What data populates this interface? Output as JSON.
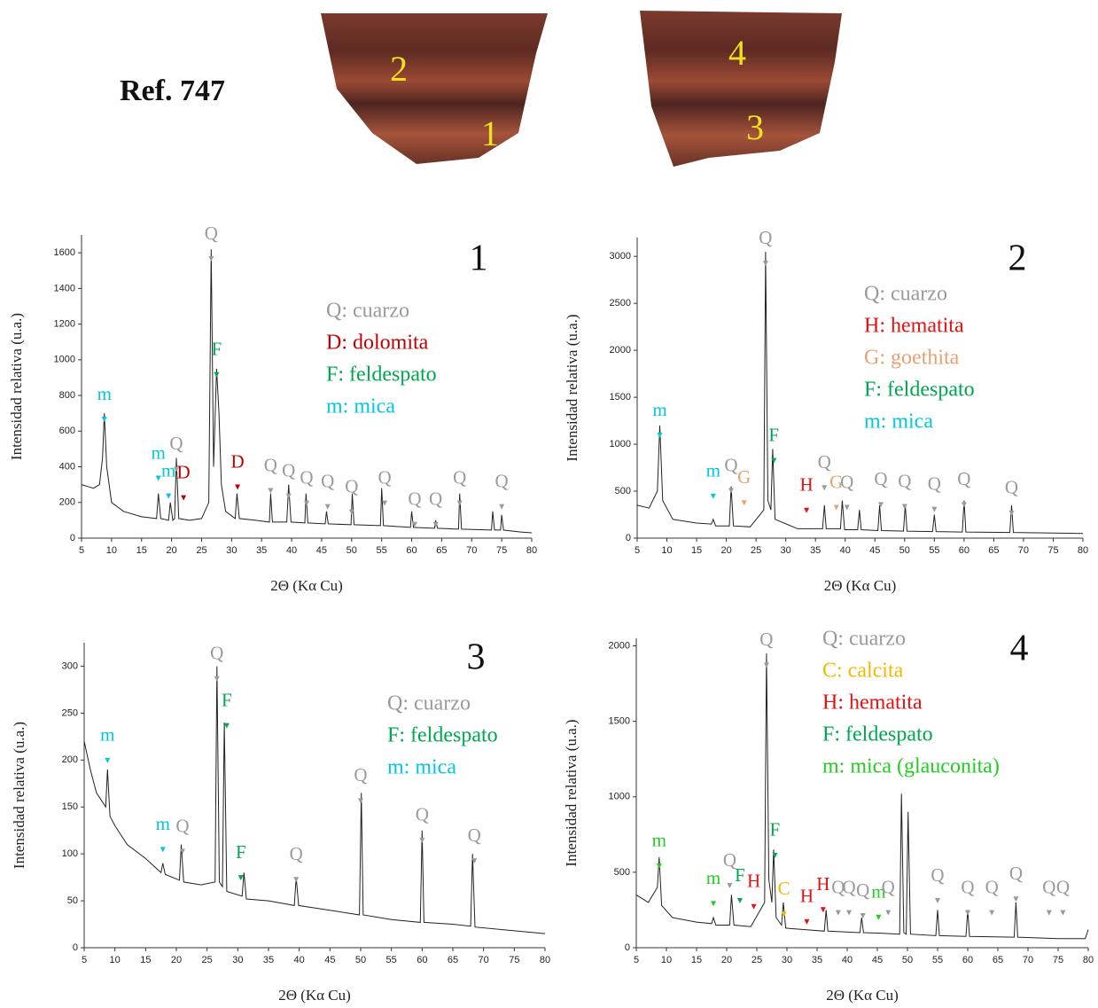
{
  "header": {
    "title": "Ref. 747",
    "fragment_labels": [
      "2",
      "1",
      "4",
      "3"
    ]
  },
  "chart_data": [
    {
      "type": "line",
      "label": "1",
      "xlabel": "2Θ (Kα Cu)",
      "ylabel": "Intensidad relativa (u.a.)",
      "xlim": [
        5,
        80
      ],
      "xticks": [
        5,
        10,
        15,
        20,
        25,
        30,
        35,
        40,
        45,
        50,
        55,
        60,
        65,
        70,
        75,
        80
      ],
      "ylim": [
        0,
        1700
      ],
      "yticks": [
        0,
        200,
        400,
        600,
        800,
        1000,
        1200,
        1400,
        1600
      ],
      "legend": [
        {
          "text": "Q: cuarzo",
          "color": "#9a9a9a"
        },
        {
          "text": "D: dolomita",
          "color": "#c00000"
        },
        {
          "text": "F: feldespato",
          "color": "#00a650"
        },
        {
          "text": "m: mica",
          "color": "#00c8e0"
        }
      ],
      "series": [
        {
          "color": "#222222",
          "x": [
            5,
            6,
            7,
            8,
            8.5,
            8.8,
            9.2,
            10,
            12,
            15,
            17.5,
            17.8,
            18.2,
            19.5,
            19.8,
            20.2,
            20.5,
            20.8,
            21.2,
            23,
            25,
            26.2,
            26.6,
            27,
            27.5,
            27.9,
            28.3,
            29,
            30.6,
            30.9,
            31.3,
            34,
            36.3,
            36.5,
            36.8,
            39.2,
            39.5,
            39.9,
            42.2,
            42.4,
            42.7,
            45.6,
            45.8,
            46.1,
            49.9,
            50.1,
            50.4,
            54.8,
            55,
            55.3,
            59.8,
            60,
            60.3,
            63.8,
            64,
            64.3,
            67.8,
            68,
            68.3,
            73.3,
            73.5,
            73.8,
            74.8,
            75,
            75.3,
            78,
            80
          ],
          "values": [
            300,
            290,
            280,
            300,
            450,
            700,
            400,
            200,
            150,
            120,
            110,
            250,
            110,
            100,
            200,
            100,
            110,
            450,
            110,
            100,
            110,
            200,
            1620,
            400,
            950,
            700,
            300,
            150,
            110,
            250,
            110,
            100,
            90,
            250,
            90,
            90,
            300,
            90,
            85,
            250,
            85,
            80,
            150,
            80,
            75,
            250,
            75,
            70,
            280,
            70,
            60,
            150,
            60,
            55,
            100,
            55,
            50,
            250,
            50,
            45,
            150,
            45,
            45,
            130,
            45,
            35,
            30
          ]
        }
      ],
      "annotations": [
        {
          "text": "m",
          "x": 8.8,
          "y": 800,
          "color": "#00c8e0"
        },
        {
          "text": "m",
          "x": 17.8,
          "y": 470,
          "color": "#00c8e0"
        },
        {
          "text": "m",
          "x": 19.5,
          "y": 370,
          "color": "#00c8e0"
        },
        {
          "text": "Q",
          "x": 20.8,
          "y": 520,
          "color": "#9a9a9a"
        },
        {
          "text": "D",
          "x": 22,
          "y": 360,
          "color": "#c00000"
        },
        {
          "text": "Q",
          "x": 26.6,
          "y": 1700,
          "color": "#9a9a9a"
        },
        {
          "text": "F",
          "x": 27.5,
          "y": 1050,
          "color": "#00a650"
        },
        {
          "text": "D",
          "x": 31,
          "y": 420,
          "color": "#c00000"
        },
        {
          "text": "Q",
          "x": 36.5,
          "y": 400,
          "color": "#9a9a9a"
        },
        {
          "text": "Q",
          "x": 39.5,
          "y": 370,
          "color": "#9a9a9a"
        },
        {
          "text": "Q",
          "x": 42.5,
          "y": 330,
          "color": "#9a9a9a"
        },
        {
          "text": "Q",
          "x": 46,
          "y": 310,
          "color": "#9a9a9a"
        },
        {
          "text": "Q",
          "x": 50,
          "y": 280,
          "color": "#9a9a9a"
        },
        {
          "text": "Q",
          "x": 55.5,
          "y": 330,
          "color": "#9a9a9a"
        },
        {
          "text": "Q",
          "x": 60.5,
          "y": 210,
          "color": "#9a9a9a"
        },
        {
          "text": "Q",
          "x": 64,
          "y": 210,
          "color": "#9a9a9a"
        },
        {
          "text": "Q",
          "x": 68,
          "y": 330,
          "color": "#9a9a9a"
        },
        {
          "text": "Q",
          "x": 75,
          "y": 310,
          "color": "#9a9a9a"
        }
      ]
    },
    {
      "type": "line",
      "label": "2",
      "xlabel": "2Θ (Kα Cu)",
      "ylabel": "Intensidad relativa (u.a.)",
      "xlim": [
        5,
        80
      ],
      "xticks": [
        5,
        10,
        15,
        20,
        25,
        30,
        35,
        40,
        45,
        50,
        55,
        60,
        65,
        70,
        75,
        80
      ],
      "ylim": [
        0,
        3200
      ],
      "yticks": [
        0,
        500,
        1000,
        1500,
        2000,
        2500,
        3000
      ],
      "legend": [
        {
          "text": "Q: cuarzo",
          "color": "#9a9a9a"
        },
        {
          "text": "H: hematita",
          "color": "#e81010"
        },
        {
          "text": "G: goethita",
          "color": "#e8a070"
        },
        {
          "text": "F: feldespato",
          "color": "#00a650"
        },
        {
          "text": "m: mica",
          "color": "#00c8e0"
        }
      ],
      "series": [
        {
          "color": "#222222",
          "x": [
            5,
            7,
            8.4,
            8.8,
            9.3,
            11,
            15,
            17.5,
            17.8,
            18.2,
            20.5,
            20.8,
            21.2,
            24,
            26.3,
            26.6,
            27,
            27.5,
            27.8,
            28.2,
            32,
            36.2,
            36.5,
            36.8,
            39.2,
            39.5,
            39.9,
            42.1,
            42.4,
            42.7,
            45.5,
            45.8,
            46.1,
            49.8,
            50.1,
            50.4,
            54.7,
            55,
            55.3,
            59.7,
            60,
            60.3,
            67.7,
            68,
            68.3,
            75,
            80
          ],
          "values": [
            350,
            320,
            500,
            1200,
            400,
            200,
            160,
            150,
            200,
            130,
            130,
            550,
            130,
            120,
            300,
            3050,
            400,
            300,
            950,
            200,
            100,
            100,
            350,
            100,
            100,
            400,
            90,
            90,
            300,
            90,
            80,
            350,
            80,
            75,
            350,
            75,
            70,
            250,
            70,
            65,
            400,
            65,
            60,
            350,
            60,
            55,
            50
          ]
        }
      ],
      "annotations": [
        {
          "text": "m",
          "x": 8.8,
          "y": 1350,
          "color": "#00c8e0"
        },
        {
          "text": "m",
          "x": 17.8,
          "y": 700,
          "color": "#00c8e0"
        },
        {
          "text": "Q",
          "x": 20.8,
          "y": 760,
          "color": "#9a9a9a"
        },
        {
          "text": "G",
          "x": 23,
          "y": 630,
          "color": "#e8a070"
        },
        {
          "text": "Q",
          "x": 26.6,
          "y": 3180,
          "color": "#9a9a9a"
        },
        {
          "text": "F",
          "x": 28,
          "y": 1080,
          "color": "#00a650"
        },
        {
          "text": "H",
          "x": 33.5,
          "y": 550,
          "color": "#e81010"
        },
        {
          "text": "Q",
          "x": 36.5,
          "y": 790,
          "color": "#9a9a9a"
        },
        {
          "text": "G",
          "x": 38.5,
          "y": 580,
          "color": "#e8a070"
        },
        {
          "text": "Q",
          "x": 40.3,
          "y": 580,
          "color": "#9a9a9a"
        },
        {
          "text": "Q",
          "x": 46,
          "y": 610,
          "color": "#9a9a9a"
        },
        {
          "text": "Q",
          "x": 50,
          "y": 590,
          "color": "#9a9a9a"
        },
        {
          "text": "Q",
          "x": 55,
          "y": 560,
          "color": "#9a9a9a"
        },
        {
          "text": "Q",
          "x": 60,
          "y": 610,
          "color": "#9a9a9a"
        },
        {
          "text": "Q",
          "x": 68,
          "y": 520,
          "color": "#9a9a9a"
        }
      ]
    },
    {
      "type": "line",
      "label": "3",
      "xlabel": "2Θ (Kα Cu)",
      "ylabel": "Intensidad relativa (u.a.)",
      "xlim": [
        5,
        80
      ],
      "xticks": [
        5,
        10,
        15,
        20,
        25,
        30,
        35,
        40,
        45,
        50,
        55,
        60,
        65,
        70,
        75,
        80
      ],
      "ylim": [
        0,
        325
      ],
      "yticks": [
        0,
        50,
        100,
        150,
        200,
        250,
        300
      ],
      "legend": [
        {
          "text": "Q: cuarzo",
          "color": "#9a9a9a"
        },
        {
          "text": "F: feldespato",
          "color": "#00a650"
        },
        {
          "text": "m: mica",
          "color": "#00c8e0"
        }
      ],
      "series": [
        {
          "color": "#222222",
          "x": [
            5,
            6,
            7,
            8.5,
            8.8,
            9.2,
            10,
            12,
            15,
            17.5,
            17.8,
            18.2,
            20.5,
            20.8,
            21.2,
            24,
            26.3,
            26.6,
            27,
            27.5,
            27.8,
            28.2,
            30.7,
            31,
            31.4,
            35,
            39.2,
            39.5,
            39.9,
            45,
            49.8,
            50.1,
            50.4,
            55,
            59.7,
            60,
            60.3,
            65,
            67.9,
            68.2,
            68.6,
            75,
            80
          ],
          "values": [
            220,
            190,
            165,
            150,
            190,
            140,
            130,
            110,
            95,
            80,
            90,
            78,
            72,
            110,
            70,
            67,
            70,
            300,
            70,
            65,
            240,
            60,
            55,
            80,
            52,
            50,
            45,
            75,
            45,
            40,
            35,
            165,
            35,
            30,
            27,
            125,
            27,
            25,
            23,
            100,
            22,
            18,
            15
          ]
        }
      ],
      "annotations": [
        {
          "text": "m",
          "x": 8.8,
          "y": 225,
          "color": "#00c8e0"
        },
        {
          "text": "m",
          "x": 17.8,
          "y": 130,
          "color": "#00c8e0"
        },
        {
          "text": "Q",
          "x": 21,
          "y": 128,
          "color": "#9a9a9a"
        },
        {
          "text": "Q",
          "x": 26.6,
          "y": 312,
          "color": "#9a9a9a"
        },
        {
          "text": "F",
          "x": 28.2,
          "y": 262,
          "color": "#00a650"
        },
        {
          "text": "F",
          "x": 30.5,
          "y": 100,
          "color": "#00a650"
        },
        {
          "text": "Q",
          "x": 39.5,
          "y": 98,
          "color": "#9a9a9a"
        },
        {
          "text": "Q",
          "x": 50,
          "y": 182,
          "color": "#9a9a9a"
        },
        {
          "text": "Q",
          "x": 60,
          "y": 140,
          "color": "#9a9a9a"
        },
        {
          "text": "Q",
          "x": 68.5,
          "y": 118,
          "color": "#9a9a9a"
        }
      ]
    },
    {
      "type": "line",
      "label": "4",
      "xlabel": "2Θ (Kα Cu)",
      "ylabel": "Intensidad relativa (u.a.)",
      "xlim": [
        5,
        80
      ],
      "xticks": [
        5,
        10,
        15,
        20,
        25,
        30,
        35,
        40,
        45,
        50,
        55,
        60,
        65,
        70,
        75,
        80
      ],
      "ylim": [
        0,
        2050
      ],
      "yticks": [
        0,
        500,
        1000,
        1500,
        2000
      ],
      "legend": [
        {
          "text": "Q: cuarzo",
          "color": "#9a9a9a"
        },
        {
          "text": "C: calcita",
          "color": "#f5b800"
        },
        {
          "text": "H: hematita",
          "color": "#e81010"
        },
        {
          "text": "F: feldespato",
          "color": "#00a650"
        },
        {
          "text": "m: mica (glauconita)",
          "color": "#22cc22"
        }
      ],
      "series": [
        {
          "color": "#222222",
          "x": [
            5,
            7,
            8.5,
            8.8,
            9.2,
            11,
            15,
            17.5,
            17.8,
            18.2,
            20.5,
            20.8,
            21.2,
            24,
            26.3,
            26.6,
            27,
            27.5,
            27.8,
            28.2,
            29.1,
            29.4,
            29.8,
            33,
            36.2,
            36.5,
            36.8,
            42.1,
            42.4,
            42.7,
            46,
            48.7,
            49,
            49.4,
            49.8,
            50.1,
            50.5,
            54.7,
            55,
            55.3,
            59.7,
            60,
            60.3,
            67.7,
            68,
            68.3,
            75,
            79.5,
            80
          ],
          "values": [
            350,
            300,
            400,
            600,
            280,
            200,
            170,
            160,
            200,
            150,
            150,
            350,
            150,
            140,
            300,
            1950,
            450,
            300,
            650,
            200,
            150,
            300,
            130,
            120,
            110,
            250,
            110,
            100,
            200,
            100,
            95,
            90,
            1020,
            100,
            90,
            900,
            90,
            80,
            250,
            80,
            75,
            250,
            75,
            70,
            300,
            70,
            60,
            60,
            120
          ]
        }
      ],
      "annotations": [
        {
          "text": "Q",
          "x": 26.6,
          "y": 2030,
          "color": "#9a9a9a"
        },
        {
          "text": "m",
          "x": 8.8,
          "y": 700,
          "color": "#22cc22"
        },
        {
          "text": "m",
          "x": 17.8,
          "y": 450,
          "color": "#22cc22"
        },
        {
          "text": "Q",
          "x": 20.5,
          "y": 570,
          "color": "#9a9a9a"
        },
        {
          "text": "F",
          "x": 22.2,
          "y": 470,
          "color": "#00a650"
        },
        {
          "text": "H",
          "x": 24.5,
          "y": 430,
          "color": "#e81010"
        },
        {
          "text": "F",
          "x": 28,
          "y": 770,
          "color": "#00a650"
        },
        {
          "text": "C",
          "x": 29.5,
          "y": 380,
          "color": "#f5b800"
        },
        {
          "text": "H",
          "x": 33.3,
          "y": 330,
          "color": "#e81010"
        },
        {
          "text": "H",
          "x": 36,
          "y": 410,
          "color": "#e81010"
        },
        {
          "text": "Q",
          "x": 38.5,
          "y": 390,
          "color": "#9a9a9a"
        },
        {
          "text": "Q",
          "x": 40.3,
          "y": 390,
          "color": "#9a9a9a"
        },
        {
          "text": "Q",
          "x": 42.6,
          "y": 370,
          "color": "#9a9a9a"
        },
        {
          "text": "m",
          "x": 45.2,
          "y": 360,
          "color": "#22cc22"
        },
        {
          "text": "Q",
          "x": 46.8,
          "y": 390,
          "color": "#9a9a9a"
        },
        {
          "text": "Q",
          "x": 55,
          "y": 470,
          "color": "#9a9a9a"
        },
        {
          "text": "Q",
          "x": 60,
          "y": 390,
          "color": "#9a9a9a"
        },
        {
          "text": "Q",
          "x": 64,
          "y": 390,
          "color": "#9a9a9a"
        },
        {
          "text": "Q",
          "x": 68,
          "y": 480,
          "color": "#9a9a9a"
        },
        {
          "text": "Q",
          "x": 73.5,
          "y": 390,
          "color": "#9a9a9a"
        },
        {
          "text": "Q",
          "x": 75.8,
          "y": 390,
          "color": "#9a9a9a"
        }
      ]
    }
  ]
}
